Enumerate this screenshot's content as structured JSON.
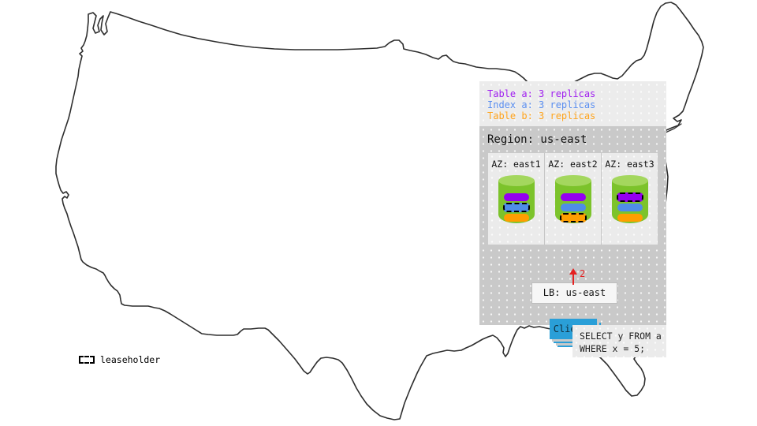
{
  "legend": {
    "items": [
      {
        "key": "table-a",
        "label": "Table a: 3 replicas",
        "color": "#a020f0"
      },
      {
        "key": "index-a",
        "label": "Index a: 3 replicas",
        "color": "#5b8ff0"
      },
      {
        "key": "table-b",
        "label": "Table b: 3 replicas",
        "color": "#ffa41c"
      }
    ]
  },
  "region": {
    "title": "Region: us-east",
    "azs": [
      {
        "label": "AZ: east1",
        "replicas": [
          {
            "key": "table-a",
            "color": "#9400f0",
            "leaseholder": false
          },
          {
            "key": "index-a",
            "color": "#4f8de8",
            "leaseholder": true
          },
          {
            "key": "table-b",
            "color": "#ff9e00",
            "leaseholder": false
          }
        ]
      },
      {
        "label": "AZ: east2",
        "replicas": [
          {
            "key": "table-a",
            "color": "#9400f0",
            "leaseholder": false
          },
          {
            "key": "index-a",
            "color": "#4f8de8",
            "leaseholder": false
          },
          {
            "key": "table-b",
            "color": "#ff9e00",
            "leaseholder": true
          }
        ]
      },
      {
        "label": "AZ: east3",
        "replicas": [
          {
            "key": "table-a",
            "color": "#9400f0",
            "leaseholder": true
          },
          {
            "key": "index-a",
            "color": "#4f8de8",
            "leaseholder": false
          },
          {
            "key": "table-b",
            "color": "#ff9e00",
            "leaseholder": false
          }
        ]
      }
    ],
    "load_balancer": {
      "label": "LB: us-east"
    },
    "clients": {
      "label": "Clients",
      "color": "#2a9fd8"
    },
    "arrow": {
      "label": "2",
      "color": "#e42222"
    }
  },
  "query": {
    "line1": "SELECT y FROM a",
    "line2": "WHERE x = 5;"
  },
  "map_legend": {
    "label": "leaseholder"
  },
  "colors": {
    "panel_light": "#ececec",
    "panel_gray": "#c9c9c9",
    "az_bg": "#ebebeb",
    "cylinder_body": "#7cc32b",
    "cylinder_top": "#a4d75e"
  }
}
